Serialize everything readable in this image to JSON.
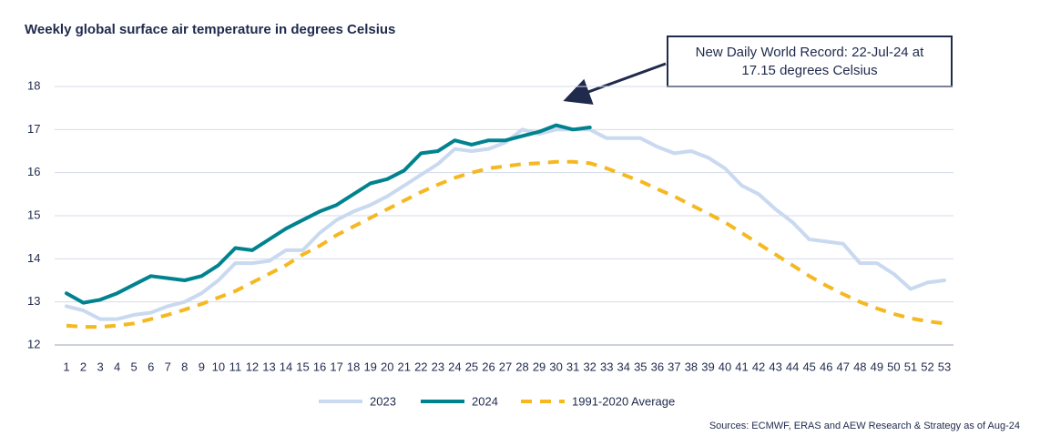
{
  "chart_data": {
    "type": "line",
    "title": "Weekly global surface air temperature in degrees Celsius",
    "annotation": [
      "New Daily World Record: 22-Jul-24 at",
      "17.15 degrees Celsius"
    ],
    "source": "Sources: ECMWF, ERAS and AEW Research & Strategy as of Aug-24",
    "categories": [
      "1",
      "2",
      "3",
      "4",
      "5",
      "6",
      "7",
      "8",
      "9",
      "10",
      "11",
      "12",
      "13",
      "14",
      "15",
      "16",
      "17",
      "18",
      "19",
      "20",
      "21",
      "22",
      "23",
      "24",
      "25",
      "26",
      "27",
      "28",
      "29",
      "30",
      "31",
      "32",
      "33",
      "34",
      "35",
      "36",
      "37",
      "38",
      "39",
      "40",
      "41",
      "42",
      "43",
      "44",
      "45",
      "46",
      "47",
      "48",
      "49",
      "50",
      "51",
      "52",
      "53"
    ],
    "ylim": [
      12,
      18
    ],
    "yticks": [
      12,
      13,
      14,
      15,
      16,
      17,
      18
    ],
    "grid": true,
    "series": [
      {
        "name": "2023",
        "color": "#c9d9ef",
        "dashed": false,
        "values": [
          12.9,
          12.8,
          12.6,
          12.6,
          12.7,
          12.75,
          12.9,
          13.0,
          13.2,
          13.5,
          13.9,
          13.9,
          13.95,
          14.2,
          14.2,
          14.6,
          14.9,
          15.1,
          15.25,
          15.45,
          15.7,
          15.95,
          16.2,
          16.55,
          16.5,
          16.55,
          16.7,
          17.0,
          16.9,
          17.0,
          17.0,
          17.0,
          16.8,
          16.8,
          16.8,
          16.6,
          16.45,
          16.5,
          16.35,
          16.1,
          15.7,
          15.5,
          15.15,
          14.85,
          14.45,
          14.4,
          14.35,
          13.9,
          13.9,
          13.65,
          13.3,
          13.45,
          13.5
        ]
      },
      {
        "name": "2024",
        "color": "#00838f",
        "dashed": false,
        "values": [
          13.2,
          12.98,
          13.05,
          13.2,
          13.4,
          13.6,
          13.55,
          13.5,
          13.6,
          13.85,
          14.25,
          14.2,
          14.45,
          14.7,
          14.9,
          15.1,
          15.25,
          15.5,
          15.75,
          15.85,
          16.05,
          16.45,
          16.5,
          16.75,
          16.65,
          16.75,
          16.75,
          16.85,
          16.95,
          17.1,
          17.0,
          17.05,
          null,
          null,
          null,
          null,
          null,
          null,
          null,
          null,
          null,
          null,
          null,
          null,
          null,
          null,
          null,
          null,
          null,
          null,
          null,
          null,
          null
        ]
      },
      {
        "name": "1991-2020 Average",
        "color": "#f5b820",
        "dashed": true,
        "values": [
          12.45,
          12.42,
          12.42,
          12.45,
          12.5,
          12.6,
          12.7,
          12.82,
          12.95,
          13.1,
          13.25,
          13.45,
          13.65,
          13.85,
          14.1,
          14.3,
          14.55,
          14.75,
          14.95,
          15.15,
          15.35,
          15.55,
          15.72,
          15.88,
          16.0,
          16.1,
          16.15,
          16.2,
          16.22,
          16.25,
          16.25,
          16.22,
          16.1,
          15.95,
          15.8,
          15.62,
          15.45,
          15.25,
          15.05,
          14.85,
          14.6,
          14.35,
          14.1,
          13.85,
          13.6,
          13.38,
          13.18,
          13.0,
          12.85,
          12.72,
          12.62,
          12.55,
          12.5
        ]
      }
    ]
  }
}
